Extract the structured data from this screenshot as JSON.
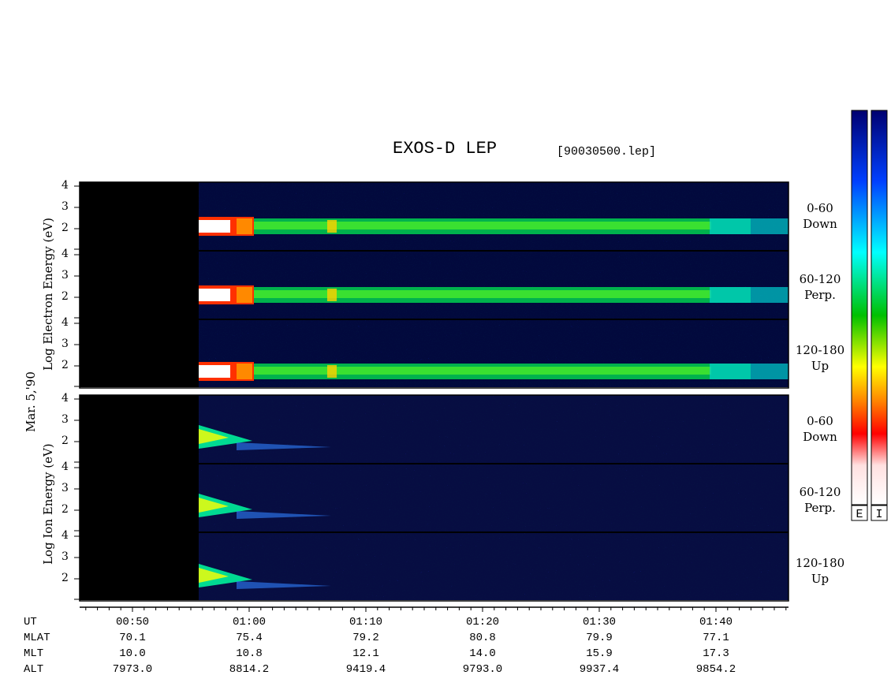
{
  "title": "EXOS-D LEP",
  "filename": "[90030500.lep]",
  "date_label": "Mar. 5,'90",
  "colorbar": {
    "labels": [
      "E",
      "I"
    ],
    "stops": [
      "#ffffff",
      "#ff0000",
      "#ffa500",
      "#ffff00",
      "#00c800",
      "#00ffff",
      "#0050ff",
      "#000080"
    ]
  },
  "chart_data": [
    {
      "type": "heatmap",
      "title": "",
      "ylabel": "Log Electron Energy (eV)",
      "yticks": [
        "4",
        "3",
        "2"
      ],
      "panels": [
        {
          "label": "0-60\nDown"
        },
        {
          "label": "60-120\nPerp."
        },
        {
          "label": "120-180\nUp"
        }
      ],
      "no_data_until": "00:56"
    },
    {
      "type": "heatmap",
      "title": "",
      "ylabel": "Log Ion Energy (eV)",
      "yticks": [
        "4",
        "3",
        "2"
      ],
      "panels": [
        {
          "label": "0-60\nDown"
        },
        {
          "label": "60-120\nPerp."
        },
        {
          "label": "120-180\nUp"
        }
      ],
      "no_data_until": "00:56"
    }
  ],
  "ephemeris": {
    "row_labels": [
      "UT",
      "MLAT",
      "MLT",
      "ALT"
    ],
    "columns": [
      {
        "ut": "00:50",
        "mlat": "70.1",
        "mlt": "10.0",
        "alt": "7973.0"
      },
      {
        "ut": "01:00",
        "mlat": "75.4",
        "mlt": "10.8",
        "alt": "8814.2"
      },
      {
        "ut": "01:10",
        "mlat": "79.2",
        "mlt": "12.1",
        "alt": "9419.4"
      },
      {
        "ut": "01:20",
        "mlat": "80.8",
        "mlt": "14.0",
        "alt": "9793.0"
      },
      {
        "ut": "01:30",
        "mlat": "79.9",
        "mlt": "15.9",
        "alt": "9937.4"
      },
      {
        "ut": "01:40",
        "mlat": "77.1",
        "mlt": "17.3",
        "alt": "9854.2"
      }
    ]
  }
}
